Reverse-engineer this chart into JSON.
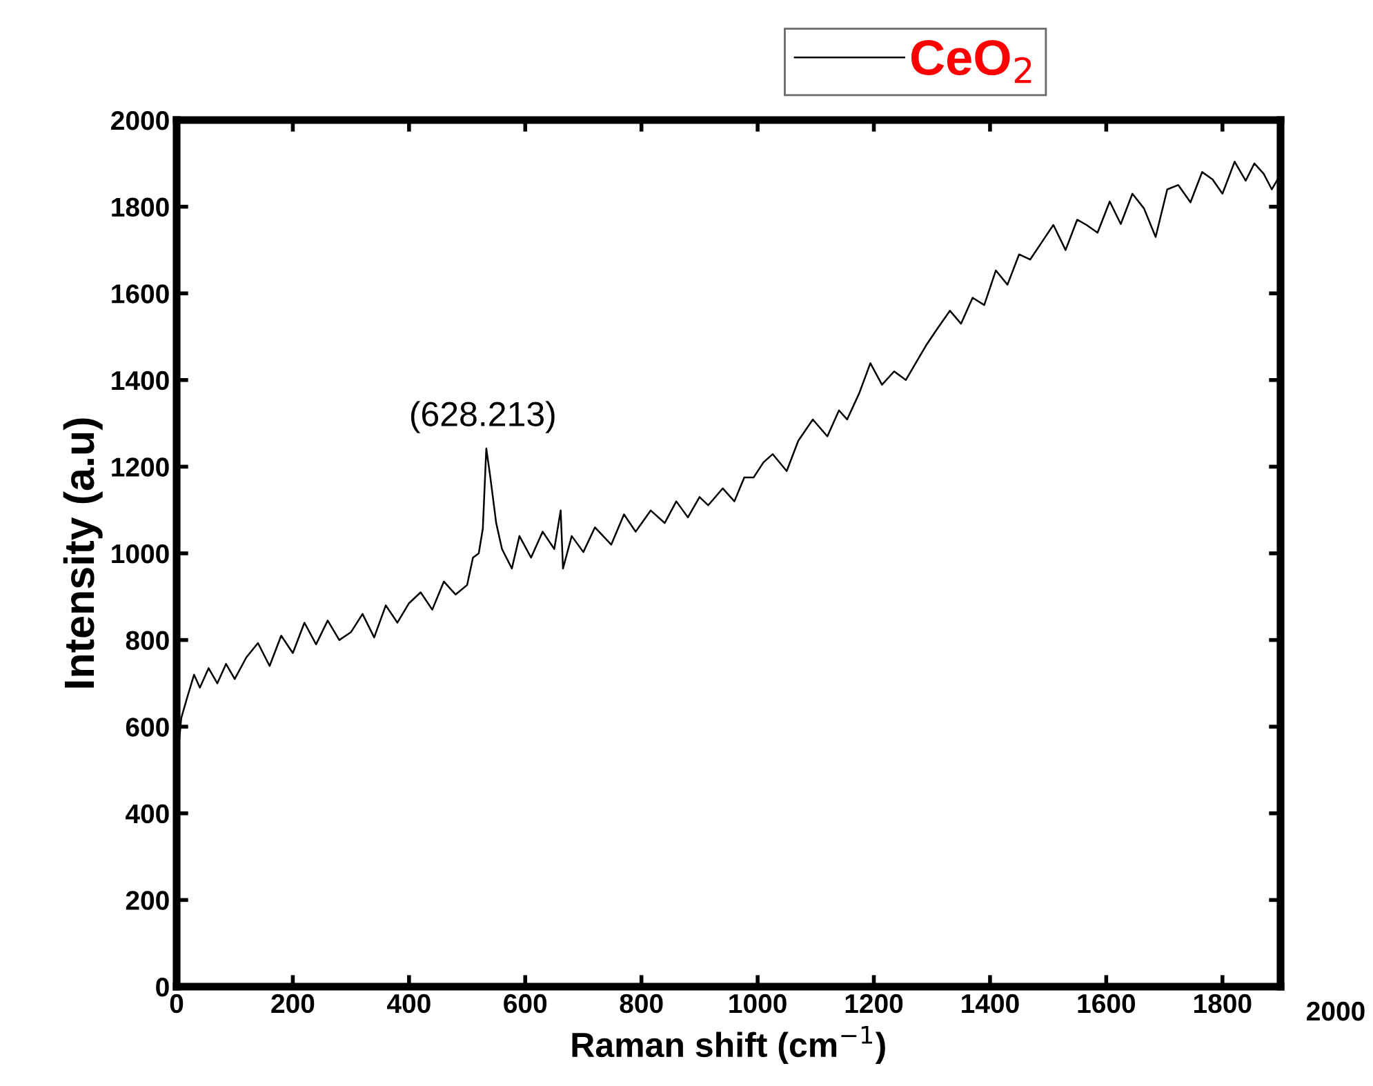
{
  "chart_data": {
    "type": "line",
    "xlabel": "Raman shift (cm$^{−1}$)",
    "ylabel": "Intensity (a.u)",
    "xlim": [
      0,
      1900
    ],
    "ylim": [
      0,
      2000
    ],
    "xticks": [
      0,
      200,
      400,
      600,
      800,
      1000,
      1200,
      1400,
      1600,
      1800
    ],
    "yticks": [
      0,
      200,
      400,
      600,
      800,
      1000,
      1200,
      1400,
      1600,
      1800,
      2000
    ],
    "grid": false,
    "legend": "top right",
    "marker": "none",
    "line_style": "solid",
    "annotations": [
      {
        "text": "(628.213)",
        "x": 527,
        "y": 1242
      },
      "2000"
    ],
    "series": [
      {
        "name": "CeO$_{2}$",
        "color": "#000000",
        "x": [
          0,
          8,
          17,
          30,
          40,
          55,
          70,
          85,
          100,
          120,
          140,
          160,
          180,
          200,
          220,
          240,
          260,
          280,
          300,
          320,
          340,
          360,
          380,
          400,
          420,
          440,
          460,
          480,
          500,
          510,
          520,
          527,
          533,
          540,
          550,
          560,
          577,
          590,
          610,
          630,
          650,
          661,
          665,
          680,
          700,
          720,
          748,
          770,
          790,
          816,
          840,
          860,
          880,
          900,
          915,
          940,
          960,
          977,
          993,
          1010,
          1026,
          1050,
          1070,
          1095,
          1120,
          1140,
          1154,
          1175,
          1194,
          1214,
          1235,
          1255,
          1272,
          1290,
          1310,
          1331,
          1350,
          1370,
          1390,
          1410,
          1430,
          1450,
          1469,
          1490,
          1509,
          1530,
          1550,
          1566,
          1585,
          1606,
          1625,
          1645,
          1665,
          1685,
          1705,
          1724,
          1745,
          1765,
          1783,
          1800,
          1821,
          1840,
          1855,
          1871,
          1885,
          1895
        ],
        "values": [
          503,
          620,
          662,
          720,
          690,
          735,
          700,
          745,
          710,
          760,
          793,
          740,
          810,
          770,
          840,
          790,
          845,
          800,
          818,
          860,
          806,
          880,
          840,
          885,
          910,
          870,
          935,
          905,
          927,
          990,
          1000,
          1057,
          1242,
          1175,
          1070,
          1010,
          965,
          1040,
          990,
          1050,
          1010,
          1099,
          965,
          1040,
          1003,
          1060,
          1020,
          1090,
          1050,
          1099,
          1070,
          1120,
          1083,
          1130,
          1111,
          1150,
          1120,
          1175,
          1175,
          1210,
          1229,
          1190,
          1260,
          1309,
          1270,
          1330,
          1309,
          1370,
          1439,
          1389,
          1420,
          1400,
          1439,
          1480,
          1520,
          1560,
          1530,
          1590,
          1573,
          1653,
          1620,
          1690,
          1678,
          1720,
          1758,
          1700,
          1770,
          1758,
          1740,
          1812,
          1760,
          1830,
          1796,
          1730,
          1840,
          1850,
          1810,
          1880,
          1863,
          1830,
          1904,
          1860,
          1900,
          1876,
          1840,
          1863
        ]
      }
    ]
  }
}
